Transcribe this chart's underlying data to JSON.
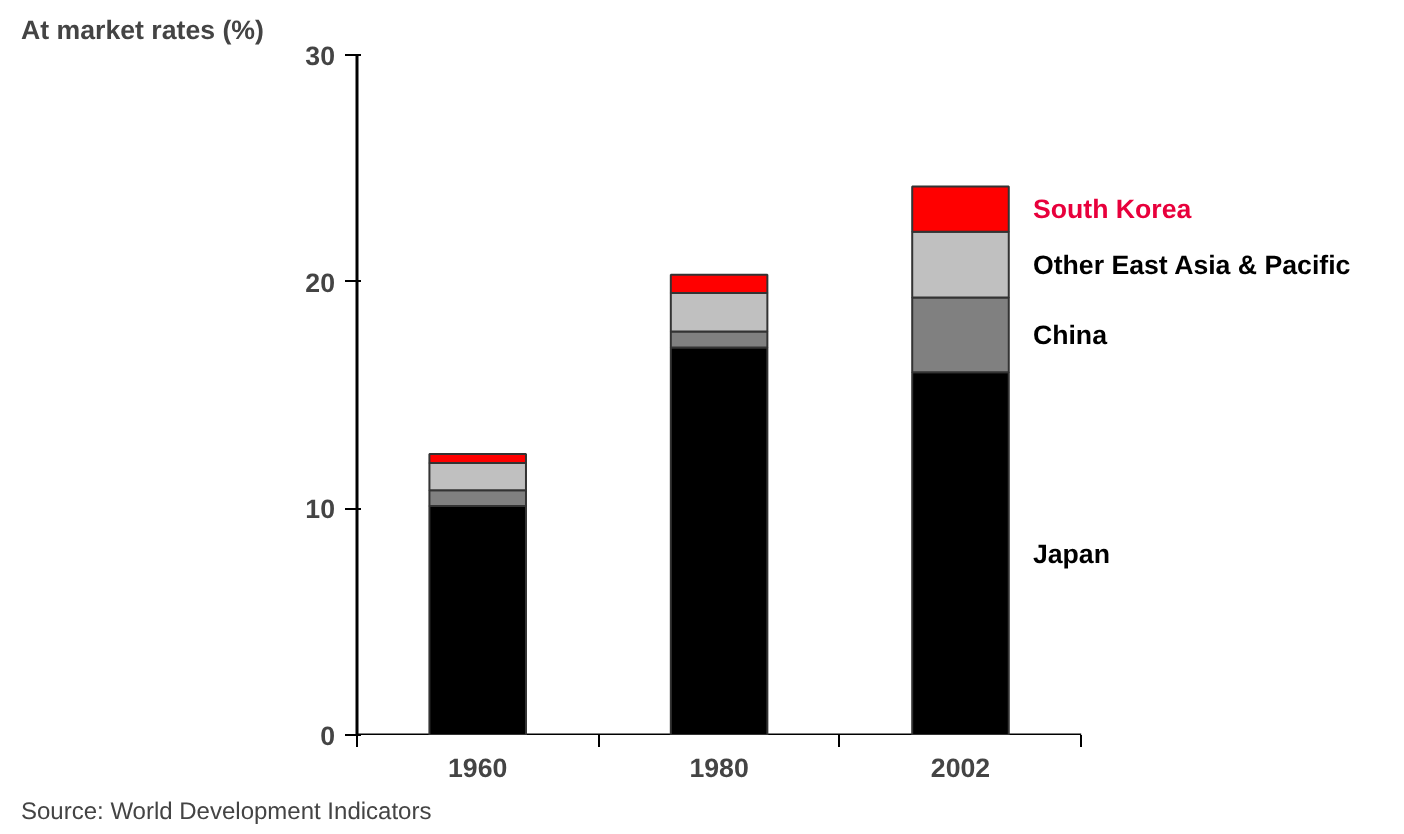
{
  "chart_data": {
    "type": "bar",
    "stacked": true,
    "title": "At market rates (%)",
    "categories": [
      "1960",
      "1980",
      "2002"
    ],
    "series": [
      {
        "name": "Japan",
        "color": "#000000",
        "values": [
          10.1,
          17.1,
          16.0
        ]
      },
      {
        "name": "China",
        "color": "#808080",
        "values": [
          0.7,
          0.7,
          3.3
        ]
      },
      {
        "name": "Other East Asia & Pacific",
        "color": "#c0c0c0",
        "values": [
          1.2,
          1.7,
          2.9
        ]
      },
      {
        "name": "South Korea",
        "color": "#ff0000",
        "values": [
          0.4,
          0.8,
          2.0
        ]
      }
    ],
    "ylim": [
      0,
      30
    ],
    "yticks": [
      0,
      10,
      20,
      30
    ],
    "grid": false,
    "legend": "right",
    "annotations": [
      "Source: World Development Indicators"
    ]
  }
}
